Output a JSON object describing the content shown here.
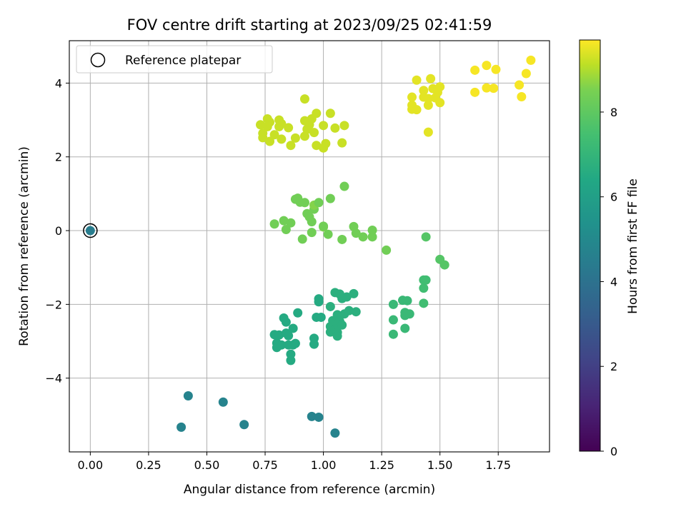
{
  "chart_data": {
    "type": "scatter",
    "title": "FOV centre drift starting at 2023/09/25 02:41:59",
    "xlabel": "Angular distance from reference (arcmin)",
    "ylabel": "Rotation from reference (arcmin)",
    "xlim": [
      -0.09,
      1.97
    ],
    "ylim": [
      -6.0,
      5.15
    ],
    "xticks": [
      0.0,
      0.25,
      0.5,
      0.75,
      1.0,
      1.25,
      1.5,
      1.75
    ],
    "xtick_labels": [
      "0.00",
      "0.25",
      "0.50",
      "0.75",
      "1.00",
      "1.25",
      "1.50",
      "1.75"
    ],
    "yticks": [
      -4,
      -2,
      0,
      2,
      4
    ],
    "ytick_labels": [
      "−4",
      "−2",
      "0",
      "2",
      "4"
    ],
    "grid": true,
    "legend": {
      "position": "top-left",
      "entries": [
        "Reference platepar"
      ]
    },
    "reference_point": {
      "x": 0.0,
      "y": 0.0
    },
    "colorbar": {
      "label": "Hours from first FF file",
      "colormap": "viridis",
      "range": [
        0,
        9.7
      ],
      "ticks": [
        0,
        2,
        4,
        6,
        8
      ],
      "tick_labels": [
        "0",
        "2",
        "4",
        "6",
        "8"
      ]
    },
    "points": [
      {
        "x": 0.39,
        "y": -5.33,
        "c": 4.3
      },
      {
        "x": 0.42,
        "y": -4.48,
        "c": 4.3
      },
      {
        "x": 0.57,
        "y": -4.65,
        "c": 4.3
      },
      {
        "x": 0.66,
        "y": -5.26,
        "c": 4.3
      },
      {
        "x": 0.95,
        "y": -5.04,
        "c": 4.3
      },
      {
        "x": 0.98,
        "y": -5.06,
        "c": 4.3
      },
      {
        "x": 1.05,
        "y": -5.49,
        "c": 4.3
      },
      {
        "x": 0.79,
        "y": -2.82,
        "c": 5.9
      },
      {
        "x": 0.8,
        "y": -3.05,
        "c": 5.9
      },
      {
        "x": 0.8,
        "y": -3.17,
        "c": 5.9
      },
      {
        "x": 0.81,
        "y": -2.83,
        "c": 5.9
      },
      {
        "x": 0.82,
        "y": -3.1,
        "c": 5.9
      },
      {
        "x": 0.83,
        "y": -2.37,
        "c": 5.9
      },
      {
        "x": 0.84,
        "y": -2.48,
        "c": 5.9
      },
      {
        "x": 0.84,
        "y": -2.78,
        "c": 5.9
      },
      {
        "x": 0.85,
        "y": -3.1,
        "c": 5.9
      },
      {
        "x": 0.86,
        "y": -3.35,
        "c": 5.9
      },
      {
        "x": 0.86,
        "y": -3.52,
        "c": 5.9
      },
      {
        "x": 0.87,
        "y": -3.1,
        "c": 5.9
      },
      {
        "x": 0.85,
        "y": -2.85,
        "c": 5.9
      },
      {
        "x": 0.87,
        "y": -2.65,
        "c": 5.9
      },
      {
        "x": 0.88,
        "y": -3.06,
        "c": 5.9
      },
      {
        "x": 0.89,
        "y": -2.23,
        "c": 5.9
      },
      {
        "x": 0.96,
        "y": -2.92,
        "c": 5.9
      },
      {
        "x": 0.96,
        "y": -3.08,
        "c": 5.9
      },
      {
        "x": 0.97,
        "y": -2.35,
        "c": 5.9
      },
      {
        "x": 0.98,
        "y": -1.93,
        "c": 5.9
      },
      {
        "x": 0.98,
        "y": -1.85,
        "c": 5.9
      },
      {
        "x": 0.99,
        "y": -2.35,
        "c": 5.9
      },
      {
        "x": 1.03,
        "y": -2.06,
        "c": 6.1
      },
      {
        "x": 1.03,
        "y": -2.6,
        "c": 6.1
      },
      {
        "x": 1.03,
        "y": -2.75,
        "c": 6.1
      },
      {
        "x": 1.04,
        "y": -2.44,
        "c": 6.1
      },
      {
        "x": 1.05,
        "y": -2.68,
        "c": 6.1
      },
      {
        "x": 1.05,
        "y": -1.68,
        "c": 6.1
      },
      {
        "x": 1.06,
        "y": -2.28,
        "c": 6.1
      },
      {
        "x": 1.06,
        "y": -2.53,
        "c": 6.1
      },
      {
        "x": 1.06,
        "y": -2.76,
        "c": 6.1
      },
      {
        "x": 1.06,
        "y": -2.86,
        "c": 6.1
      },
      {
        "x": 1.07,
        "y": -1.72,
        "c": 6.1
      },
      {
        "x": 1.07,
        "y": -2.46,
        "c": 6.1
      },
      {
        "x": 1.08,
        "y": -1.84,
        "c": 6.1
      },
      {
        "x": 1.08,
        "y": -2.56,
        "c": 6.1
      },
      {
        "x": 1.09,
        "y": -2.26,
        "c": 6.1
      },
      {
        "x": 1.1,
        "y": -1.8,
        "c": 6.1
      },
      {
        "x": 1.11,
        "y": -2.17,
        "c": 6.1
      },
      {
        "x": 1.13,
        "y": -1.71,
        "c": 6.1
      },
      {
        "x": 1.14,
        "y": -2.2,
        "c": 6.1
      },
      {
        "x": 1.3,
        "y": -2.0,
        "c": 6.5
      },
      {
        "x": 1.3,
        "y": -2.42,
        "c": 6.5
      },
      {
        "x": 1.3,
        "y": -2.81,
        "c": 6.5
      },
      {
        "x": 1.34,
        "y": -1.89,
        "c": 6.5
      },
      {
        "x": 1.35,
        "y": -2.22,
        "c": 6.5
      },
      {
        "x": 1.35,
        "y": -2.3,
        "c": 6.5
      },
      {
        "x": 1.35,
        "y": -2.65,
        "c": 6.5
      },
      {
        "x": 1.36,
        "y": -1.9,
        "c": 6.5
      },
      {
        "x": 1.37,
        "y": -2.26,
        "c": 6.5
      },
      {
        "x": 1.43,
        "y": -1.34,
        "c": 6.7
      },
      {
        "x": 1.43,
        "y": -1.56,
        "c": 6.7
      },
      {
        "x": 1.44,
        "y": -1.34,
        "c": 6.7
      },
      {
        "x": 1.43,
        "y": -1.97,
        "c": 6.7
      },
      {
        "x": 1.44,
        "y": -0.17,
        "c": 7.1
      },
      {
        "x": 1.5,
        "y": -0.78,
        "c": 7.1
      },
      {
        "x": 1.52,
        "y": -0.93,
        "c": 7.1
      },
      {
        "x": 0.79,
        "y": 0.18,
        "c": 7.6
      },
      {
        "x": 0.83,
        "y": 0.27,
        "c": 7.6
      },
      {
        "x": 0.84,
        "y": 0.03,
        "c": 7.6
      },
      {
        "x": 0.86,
        "y": 0.21,
        "c": 7.6
      },
      {
        "x": 0.88,
        "y": 0.85,
        "c": 7.6
      },
      {
        "x": 0.89,
        "y": 0.88,
        "c": 7.6
      },
      {
        "x": 0.9,
        "y": 0.77,
        "c": 7.6
      },
      {
        "x": 0.91,
        "y": -0.23,
        "c": 7.6
      },
      {
        "x": 0.92,
        "y": 0.76,
        "c": 7.6
      },
      {
        "x": 0.93,
        "y": 0.46,
        "c": 7.6
      },
      {
        "x": 0.94,
        "y": 0.37,
        "c": 7.6
      },
      {
        "x": 0.95,
        "y": 0.24,
        "c": 7.6
      },
      {
        "x": 0.95,
        "y": -0.05,
        "c": 7.6
      },
      {
        "x": 0.96,
        "y": 0.58,
        "c": 7.6
      },
      {
        "x": 0.96,
        "y": 0.69,
        "c": 7.9
      },
      {
        "x": 0.98,
        "y": 0.76,
        "c": 7.6
      },
      {
        "x": 1.0,
        "y": 0.1,
        "c": 7.9
      },
      {
        "x": 1.0,
        "y": 0.12,
        "c": 7.6
      },
      {
        "x": 1.02,
        "y": -0.1,
        "c": 7.6
      },
      {
        "x": 1.03,
        "y": 0.87,
        "c": 7.6
      },
      {
        "x": 1.08,
        "y": -0.24,
        "c": 7.6
      },
      {
        "x": 1.09,
        "y": 1.2,
        "c": 7.6
      },
      {
        "x": 1.13,
        "y": 0.11,
        "c": 7.6
      },
      {
        "x": 1.14,
        "y": -0.07,
        "c": 7.6
      },
      {
        "x": 1.17,
        "y": -0.17,
        "c": 7.6
      },
      {
        "x": 1.21,
        "y": -0.17,
        "c": 7.6
      },
      {
        "x": 1.21,
        "y": 0.01,
        "c": 7.6
      },
      {
        "x": 1.27,
        "y": -0.53,
        "c": 7.6
      },
      {
        "x": 0.73,
        "y": 2.87,
        "c": 8.9
      },
      {
        "x": 0.74,
        "y": 2.64,
        "c": 8.9
      },
      {
        "x": 0.74,
        "y": 2.52,
        "c": 8.9
      },
      {
        "x": 0.76,
        "y": 3.03,
        "c": 8.9
      },
      {
        "x": 0.76,
        "y": 2.82,
        "c": 8.9
      },
      {
        "x": 0.77,
        "y": 2.42,
        "c": 8.9
      },
      {
        "x": 0.77,
        "y": 2.94,
        "c": 8.9
      },
      {
        "x": 0.79,
        "y": 2.6,
        "c": 8.9
      },
      {
        "x": 0.81,
        "y": 2.82,
        "c": 8.9
      },
      {
        "x": 0.81,
        "y": 3.0,
        "c": 8.9
      },
      {
        "x": 0.82,
        "y": 2.48,
        "c": 8.9
      },
      {
        "x": 0.82,
        "y": 2.9,
        "c": 8.9
      },
      {
        "x": 0.85,
        "y": 2.79,
        "c": 8.9
      },
      {
        "x": 0.86,
        "y": 2.31,
        "c": 8.9
      },
      {
        "x": 0.88,
        "y": 2.51,
        "c": 8.9
      },
      {
        "x": 0.92,
        "y": 3.57,
        "c": 8.9
      },
      {
        "x": 0.92,
        "y": 2.98,
        "c": 8.9
      },
      {
        "x": 0.92,
        "y": 2.56,
        "c": 8.9
      },
      {
        "x": 0.93,
        "y": 2.75,
        "c": 8.9
      },
      {
        "x": 0.94,
        "y": 2.87,
        "c": 8.9
      },
      {
        "x": 0.95,
        "y": 3.03,
        "c": 8.9
      },
      {
        "x": 0.96,
        "y": 2.66,
        "c": 8.9
      },
      {
        "x": 0.97,
        "y": 3.18,
        "c": 8.9
      },
      {
        "x": 0.97,
        "y": 2.31,
        "c": 8.9
      },
      {
        "x": 1.0,
        "y": 2.24,
        "c": 8.9
      },
      {
        "x": 1.0,
        "y": 2.85,
        "c": 8.9
      },
      {
        "x": 1.01,
        "y": 2.36,
        "c": 8.9
      },
      {
        "x": 1.03,
        "y": 3.18,
        "c": 8.9
      },
      {
        "x": 1.05,
        "y": 2.78,
        "c": 8.9
      },
      {
        "x": 1.08,
        "y": 2.38,
        "c": 8.9
      },
      {
        "x": 1.09,
        "y": 2.85,
        "c": 8.9
      },
      {
        "x": 1.38,
        "y": 3.29,
        "c": 9.3
      },
      {
        "x": 1.38,
        "y": 3.4,
        "c": 9.3
      },
      {
        "x": 1.38,
        "y": 3.62,
        "c": 9.3
      },
      {
        "x": 1.4,
        "y": 3.28,
        "c": 9.3
      },
      {
        "x": 1.4,
        "y": 4.08,
        "c": 9.3
      },
      {
        "x": 1.43,
        "y": 3.62,
        "c": 9.3
      },
      {
        "x": 1.43,
        "y": 3.8,
        "c": 9.3
      },
      {
        "x": 1.45,
        "y": 3.4,
        "c": 9.3
      },
      {
        "x": 1.45,
        "y": 3.58,
        "c": 9.3
      },
      {
        "x": 1.46,
        "y": 4.12,
        "c": 9.3
      },
      {
        "x": 1.45,
        "y": 2.67,
        "c": 9.3
      },
      {
        "x": 1.47,
        "y": 3.85,
        "c": 9.3
      },
      {
        "x": 1.48,
        "y": 3.6,
        "c": 9.3
      },
      {
        "x": 1.49,
        "y": 3.75,
        "c": 9.3
      },
      {
        "x": 1.5,
        "y": 3.47,
        "c": 9.3
      },
      {
        "x": 1.5,
        "y": 3.9,
        "c": 9.3
      },
      {
        "x": 1.65,
        "y": 4.35,
        "c": 9.6
      },
      {
        "x": 1.65,
        "y": 3.75,
        "c": 9.6
      },
      {
        "x": 1.7,
        "y": 4.48,
        "c": 9.6
      },
      {
        "x": 1.7,
        "y": 3.87,
        "c": 9.6
      },
      {
        "x": 1.73,
        "y": 3.86,
        "c": 9.6
      },
      {
        "x": 1.74,
        "y": 4.37,
        "c": 9.6
      },
      {
        "x": 1.84,
        "y": 3.95,
        "c": 9.6
      },
      {
        "x": 1.85,
        "y": 3.63,
        "c": 9.6
      },
      {
        "x": 1.87,
        "y": 4.26,
        "c": 9.6
      },
      {
        "x": 1.89,
        "y": 4.62,
        "c": 9.6
      }
    ]
  }
}
